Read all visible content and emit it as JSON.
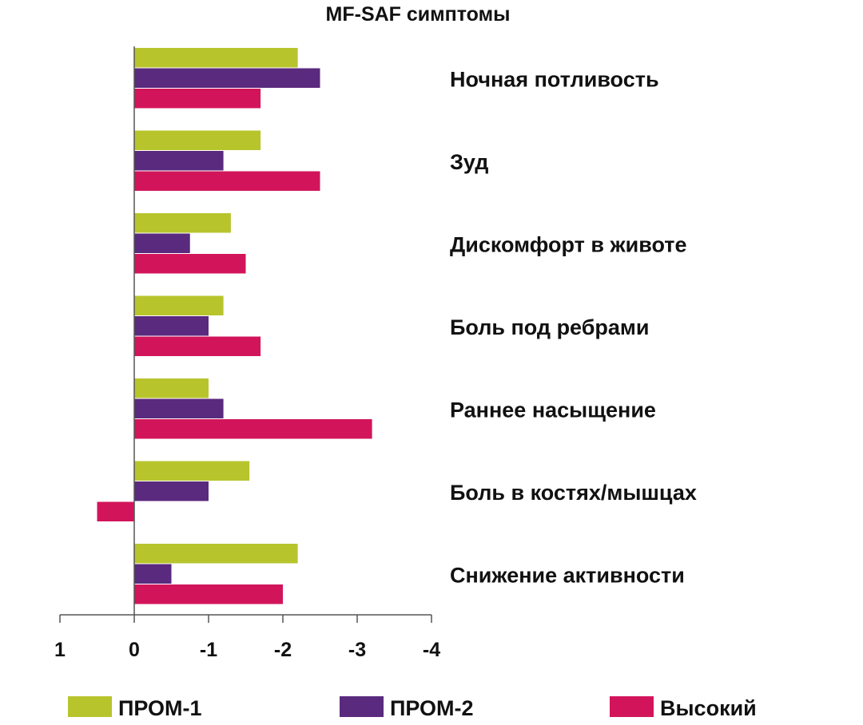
{
  "chart_data": {
    "type": "bar",
    "orientation": "horizontal",
    "title": "MF-SAF симптомы",
    "categories": [
      "Ночная потливость",
      "Зуд",
      "Дискомфорт в животе",
      "Боль под ребрами",
      "Раннее насыщение",
      "Боль в костях/мышцах",
      "Снижение активности"
    ],
    "series": [
      {
        "name": "ПРОМ-1",
        "color": "#b8c42c",
        "values": [
          -2.2,
          -1.7,
          -1.3,
          -1.2,
          -1.0,
          -1.55,
          -2.2
        ]
      },
      {
        "name": "ПРОМ-2",
        "color": "#5a2a7e",
        "values": [
          -2.5,
          -1.2,
          -0.75,
          -1.0,
          -1.2,
          -1.0,
          -0.5
        ]
      },
      {
        "name": "Высокий",
        "color": "#d2155b",
        "values": [
          -1.7,
          -2.5,
          -1.5,
          -1.7,
          -3.2,
          0.5,
          -2.0
        ]
      }
    ],
    "xlim": [
      1,
      -4
    ],
    "xticks": [
      "1",
      "0",
      "-1",
      "-2",
      "-3",
      "-4"
    ],
    "xtick_values": [
      1,
      0,
      -1,
      -2,
      -3,
      -4
    ],
    "grid": false,
    "legend_position": "bottom"
  }
}
